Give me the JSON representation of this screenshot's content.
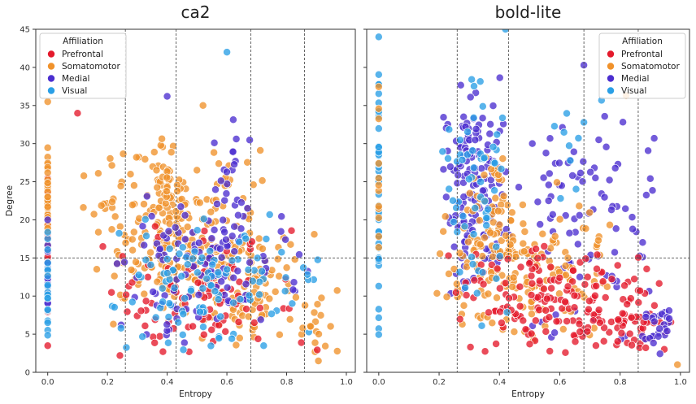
{
  "chart_data": {
    "type": "scatter",
    "y_label": "Degree",
    "y_lim": [
      0,
      45
    ],
    "y_ticks": [
      "0",
      "5",
      "10",
      "15",
      "20",
      "25",
      "30",
      "35",
      "40",
      "45"
    ],
    "x_lim": [
      -0.04,
      1.03
    ],
    "x_ticks": [
      "0.0",
      "0.2",
      "0.4",
      "0.6",
      "0.8",
      "1.0"
    ],
    "x_label": "Entropy",
    "legend": {
      "title": "Affiliation",
      "entries": [
        {
          "name": "Prefrontal",
          "color": "#e41a2c"
        },
        {
          "name": "Somatomotor",
          "color": "#f0922b"
        },
        {
          "name": "Medial",
          "color": "#4b2ecf"
        },
        {
          "name": "Visual",
          "color": "#2a9fe6"
        }
      ]
    },
    "panels": [
      {
        "title": "ca2",
        "legend_position": "upper-left",
        "vlines_x": [
          0.26,
          0.43,
          0.68,
          0.86
        ],
        "hline_y": 15,
        "clusters": [
          {
            "group": 0,
            "n": 25,
            "x": [
              0.0,
              0.0
            ],
            "y": [
              3,
              29
            ]
          },
          {
            "group": 1,
            "n": 40,
            "x": [
              0.0,
              0.0
            ],
            "y": [
              3,
              35.5
            ]
          },
          {
            "group": 2,
            "n": 15,
            "x": [
              0.0,
              0.0
            ],
            "y": [
              3,
              22
            ]
          },
          {
            "group": 3,
            "n": 20,
            "x": [
              0.0,
              0.0
            ],
            "y": [
              2.5,
              24
            ]
          },
          {
            "group": 1,
            "n": 220,
            "x": [
              0.08,
              0.8
            ],
            "y": [
              5,
              31
            ]
          },
          {
            "group": 1,
            "n": 60,
            "x": [
              0.35,
              0.45
            ],
            "y": [
              8,
              31
            ]
          },
          {
            "group": 1,
            "n": 90,
            "x": [
              0.45,
              0.9
            ],
            "y": [
              1,
              20
            ]
          },
          {
            "group": 0,
            "n": 95,
            "x": [
              0.1,
              0.92
            ],
            "y": [
              1,
              20
            ]
          },
          {
            "group": 2,
            "n": 110,
            "x": [
              0.15,
              0.92
            ],
            "y": [
              2,
              25
            ]
          },
          {
            "group": 2,
            "n": 25,
            "x": [
              0.55,
              0.7
            ],
            "y": [
              14,
              36
            ]
          },
          {
            "group": 3,
            "n": 110,
            "x": [
              0.15,
              0.95
            ],
            "y": [
              1,
              22
            ]
          },
          {
            "group": 1,
            "n": 20,
            "x": [
              0.8,
              1.0
            ],
            "y": [
              1,
              12
            ]
          }
        ],
        "points": [
          {
            "group": 3,
            "x": 0.6,
            "y": 42
          },
          {
            "group": 0,
            "x": 0.1,
            "y": 34
          },
          {
            "group": 2,
            "x": 0.4,
            "y": 36.2
          },
          {
            "group": 1,
            "x": 0.52,
            "y": 35
          },
          {
            "group": 1,
            "x": 0.0,
            "y": 35.5
          }
        ]
      },
      {
        "title": "bold-lite",
        "legend_position": "upper-right",
        "vlines_x": [
          0.26,
          0.43,
          0.68,
          0.86
        ],
        "hline_y": 15,
        "clusters": [
          {
            "group": 3,
            "n": 50,
            "x": [
              0.0,
              0.0
            ],
            "y": [
              3.5,
              44
            ]
          },
          {
            "group": 1,
            "n": 12,
            "x": [
              0.0,
              0.0
            ],
            "y": [
              8,
              42
            ]
          },
          {
            "group": 2,
            "n": 150,
            "x": [
              0.2,
              0.44
            ],
            "y": [
              8,
              40
            ]
          },
          {
            "group": 2,
            "n": 90,
            "x": [
              0.44,
              0.95
            ],
            "y": [
              2,
              38
            ]
          },
          {
            "group": 1,
            "n": 170,
            "x": [
              0.12,
              0.82
            ],
            "y": [
              2,
              25
            ]
          },
          {
            "group": 1,
            "n": 40,
            "x": [
              0.3,
              0.44
            ],
            "y": [
              10,
              34
            ]
          },
          {
            "group": 0,
            "n": 170,
            "x": [
              0.2,
              0.98
            ],
            "y": [
              2,
              17
            ]
          },
          {
            "group": 0,
            "n": 40,
            "x": [
              0.7,
              0.98
            ],
            "y": [
              2,
              10
            ]
          },
          {
            "group": 3,
            "n": 60,
            "x": [
              0.2,
              0.45
            ],
            "y": [
              5,
              42
            ]
          },
          {
            "group": 3,
            "n": 10,
            "x": [
              0.55,
              0.75
            ],
            "y": [
              20,
              40
            ]
          },
          {
            "group": 2,
            "n": 25,
            "x": [
              0.85,
              1.0
            ],
            "y": [
              1.5,
              9
            ]
          }
        ],
        "points": [
          {
            "group": 3,
            "x": 0.0,
            "y": 44
          },
          {
            "group": 3,
            "x": 0.42,
            "y": 45
          },
          {
            "group": 2,
            "x": 0.68,
            "y": 40.3
          },
          {
            "group": 1,
            "x": 0.99,
            "y": 1
          },
          {
            "group": 1,
            "x": 0.82,
            "y": 36.3
          }
        ]
      }
    ]
  }
}
